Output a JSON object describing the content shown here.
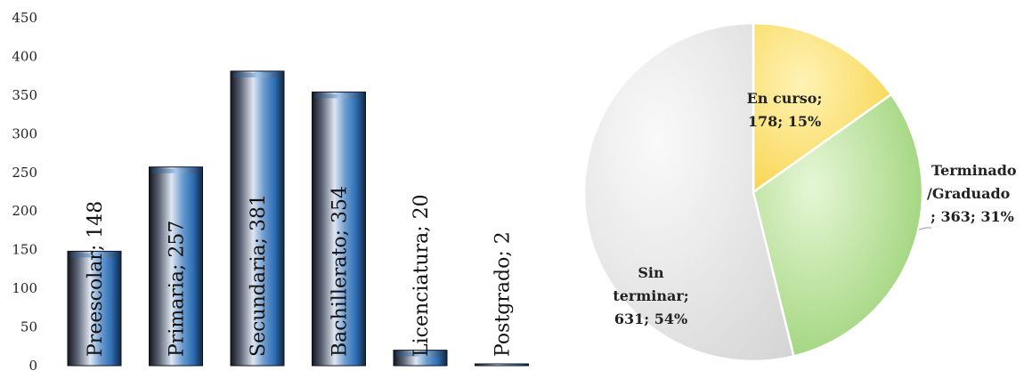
{
  "chart_data": [
    {
      "type": "bar",
      "categories": [
        "Preescolar",
        "Primaria",
        "Secundaria",
        "Bachillerato",
        "Licenciatura",
        "Postgrado"
      ],
      "values": [
        148,
        257,
        381,
        354,
        20,
        2
      ],
      "data_labels": [
        "Preescolar; 148",
        "Primaria; 257",
        "Secundaria; 381",
        "Bachillerato; 354",
        "Licenciatura; 20",
        "Postgrado; 2"
      ],
      "yticks": [
        "0",
        "50",
        "100",
        "150",
        "200",
        "250",
        "300",
        "350",
        "400",
        "450"
      ],
      "ylim": [
        0,
        450
      ],
      "grid": false,
      "title": "",
      "xlabel": "",
      "ylabel": "",
      "colors": {
        "bar_dark": "#1c1c24",
        "bar_blue": "#3e7fc4",
        "bar_light": "#e6ecf5"
      }
    },
    {
      "type": "pie",
      "categories": [
        "En curso",
        "Terminado/Graduado",
        "Sin terminar"
      ],
      "values": [
        178,
        363,
        631
      ],
      "percent": [
        15,
        31,
        54
      ],
      "label_lines": [
        [
          "En curso;",
          "178; 15%"
        ],
        [
          "Terminado",
          "/Graduado",
          "; 363; 31%"
        ],
        [
          "Sin",
          "terminar;",
          "631; 54%"
        ]
      ],
      "colors": [
        "#f7d95a",
        "#a9d98a",
        "#e6e6e6"
      ]
    }
  ]
}
